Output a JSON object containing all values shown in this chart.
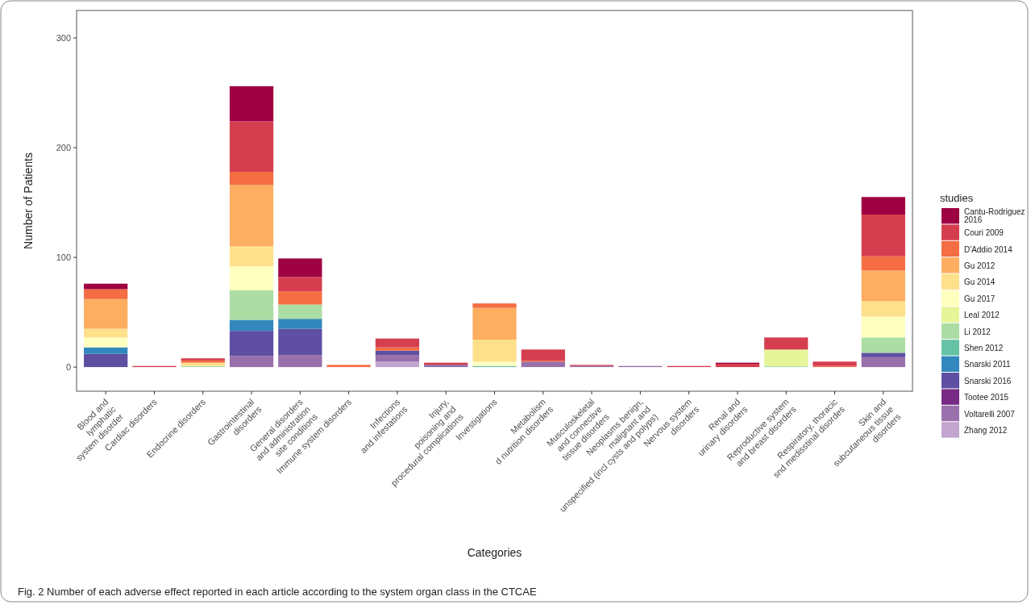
{
  "chart_data": {
    "type": "bar",
    "stacked": true,
    "xlabel": "Categories",
    "ylabel": "Number of Patients",
    "legend_title": "studies",
    "legend": "right",
    "annotations": [
      "Fig. 2  Number of each adverse effect reported in each article according to the system organ class in the CTCAE"
    ],
    "categories": [
      "Blood and\nlymphatic\nsystem disorder",
      "Cardiac disorders",
      "Endocrine disorders",
      "Gastrointestinal\ndisorders",
      "General disorders\nand administration\nsite conditions",
      "Immune system disorders",
      "Infections\nand infestations",
      "Injury,\npoisoning and\nprocedural complications",
      "Investigations",
      "Metabolism\nd nutrition disorders",
      "Musculoskeletal\nand connective\ntissue disorders",
      "Neoplasms benign,\nmalignant and\nunspecified (incl cysts and polyps)",
      "Nervous system\ndisorders",
      "Renal and\nurinary disorders",
      "Reproductive system\nand breast disorders",
      "Respiratory, thoracic\nsnd medisstinal disordes",
      "Skin and\nsubcutaneous tissue\ndisorders"
    ],
    "ylim": [
      -22,
      325
    ],
    "yticks": [
      0,
      100,
      200,
      300
    ],
    "series": [
      {
        "name": "Zhang 2012",
        "color": "#c2a5cf",
        "values": [
          null,
          null,
          null,
          null,
          null,
          null,
          5,
          null,
          null,
          null,
          null,
          null,
          null,
          null,
          null,
          null,
          null
        ]
      },
      {
        "name": "Voltarelli 2007",
        "color": "#9970ab",
        "values": [
          null,
          null,
          null,
          10,
          11,
          null,
          6,
          1,
          null,
          5,
          1,
          1,
          null,
          null,
          null,
          null,
          9
        ]
      },
      {
        "name": "Tootee 2015",
        "color": "#762a83",
        "values": [
          null,
          null,
          null,
          null,
          null,
          null,
          null,
          null,
          null,
          null,
          null,
          null,
          null,
          null,
          null,
          null,
          null
        ]
      },
      {
        "name": "Snarski 2016",
        "color": "#5e4fa2",
        "values": [
          12,
          null,
          null,
          23,
          24,
          null,
          4,
          1,
          null,
          null,
          null,
          null,
          null,
          null,
          null,
          null,
          4
        ]
      },
      {
        "name": "Snarski 2011",
        "color": "#3288bd",
        "values": [
          6,
          null,
          null,
          10,
          9,
          null,
          null,
          null,
          null,
          null,
          null,
          null,
          null,
          null,
          null,
          null,
          null
        ]
      },
      {
        "name": "Shen 2012",
        "color": "#66c2a5",
        "values": [
          null,
          null,
          null,
          null,
          null,
          null,
          null,
          null,
          1,
          null,
          null,
          null,
          null,
          null,
          null,
          null,
          null
        ]
      },
      {
        "name": "Li 2012",
        "color": "#abdda4",
        "values": [
          null,
          null,
          1,
          27,
          13,
          null,
          null,
          null,
          null,
          null,
          null,
          null,
          null,
          null,
          1,
          null,
          14
        ]
      },
      {
        "name": "Leal 2012",
        "color": "#e6f598",
        "values": [
          null,
          null,
          null,
          null,
          null,
          null,
          null,
          null,
          null,
          null,
          null,
          null,
          null,
          null,
          15,
          null,
          null
        ]
      },
      {
        "name": "Gu 2017",
        "color": "#ffffbf",
        "values": [
          9,
          null,
          null,
          22,
          null,
          null,
          null,
          null,
          4,
          null,
          null,
          null,
          null,
          null,
          null,
          null,
          19
        ]
      },
      {
        "name": "Gu 2014",
        "color": "#fee08b",
        "values": [
          8,
          null,
          3,
          18,
          null,
          null,
          null,
          null,
          20,
          null,
          null,
          null,
          null,
          null,
          null,
          null,
          14
        ]
      },
      {
        "name": "Gu 2012",
        "color": "#fdae61",
        "values": [
          27,
          null,
          null,
          56,
          null,
          null,
          null,
          null,
          29,
          null,
          null,
          null,
          null,
          null,
          null,
          null,
          28
        ]
      },
      {
        "name": "D'Addio 2014",
        "color": "#f46d43",
        "values": [
          9,
          null,
          2,
          12,
          12,
          2,
          3,
          null,
          4,
          1,
          null,
          null,
          null,
          null,
          null,
          1,
          13
        ]
      },
      {
        "name": "Couri 2009",
        "color": "#d53e4f",
        "values": [
          null,
          1,
          2,
          46,
          13,
          null,
          8,
          2,
          null,
          10,
          1,
          null,
          1,
          3,
          11,
          4,
          38
        ]
      },
      {
        "name": "Cantu-Rodriguez 2016",
        "color": "#9e0142",
        "values": [
          5,
          null,
          null,
          32,
          17,
          null,
          null,
          null,
          null,
          null,
          null,
          null,
          null,
          1,
          null,
          null,
          16
        ]
      }
    ]
  }
}
